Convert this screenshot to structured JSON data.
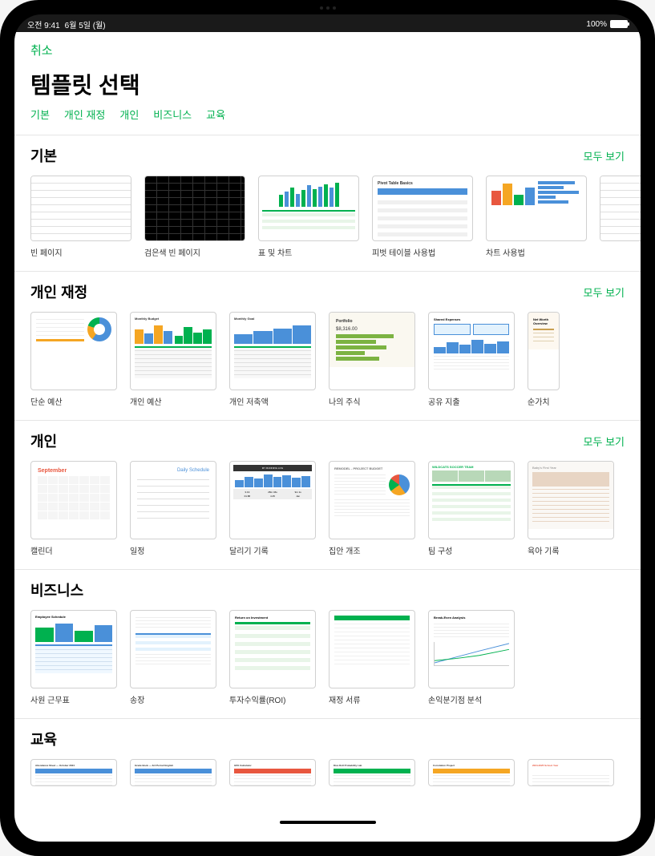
{
  "status": {
    "time": "오전 9:41",
    "date": "6월 5일 (월)",
    "battery": "100%"
  },
  "nav": {
    "cancel": "취소"
  },
  "title": "템플릿 선택",
  "categories": [
    "기본",
    "개인 재정",
    "개인",
    "비즈니스",
    "교육"
  ],
  "see_all": "모두 보기",
  "colors": {
    "accent": "#00b14f",
    "blue": "#4a90d9",
    "orange": "#f5a623",
    "red": "#e8573f",
    "lime": "#7cb342"
  },
  "sections": [
    {
      "title": "기본",
      "show_see_all": true,
      "templates": [
        {
          "label": "빈 페이지",
          "thumb": "blank_grid"
        },
        {
          "label": "검은색 빈 페이지",
          "thumb": "blank_black"
        },
        {
          "label": "표 및 차트",
          "thumb": "tables_charts"
        },
        {
          "label": "피벗 테이블 사용법",
          "thumb": "pivot_basics"
        },
        {
          "label": "차트 사용법",
          "thumb": "charting_basics"
        }
      ],
      "partial": {
        "thumb": "blank_grid"
      }
    },
    {
      "title": "개인 재정",
      "show_see_all": true,
      "templates": [
        {
          "label": "단순 예산",
          "thumb": "simple_budget"
        },
        {
          "label": "개인 예산",
          "thumb": "personal_budget"
        },
        {
          "label": "개인 저축액",
          "thumb": "personal_savings"
        },
        {
          "label": "나의 주식",
          "thumb": "portfolio"
        },
        {
          "label": "공유 지출",
          "thumb": "shared_expenses"
        },
        {
          "label": "순가치",
          "thumb": "net_worth",
          "partial": true
        }
      ]
    },
    {
      "title": "개인",
      "show_see_all": true,
      "templates": [
        {
          "label": "캘린더",
          "thumb": "calendar"
        },
        {
          "label": "일정",
          "thumb": "schedule"
        },
        {
          "label": "달리기 기록",
          "thumb": "running_log"
        },
        {
          "label": "집안 개조",
          "thumb": "remodel"
        },
        {
          "label": "팀 구성",
          "thumb": "team_roster"
        },
        {
          "label": "육아 기록",
          "thumb": "baby_record"
        }
      ]
    },
    {
      "title": "비즈니스",
      "show_see_all": false,
      "templates": [
        {
          "label": "사원 근무표",
          "thumb": "employee_schedule"
        },
        {
          "label": "송장",
          "thumb": "invoice"
        },
        {
          "label": "투자수익률(ROI)",
          "thumb": "roi"
        },
        {
          "label": "재정 서류",
          "thumb": "financials"
        },
        {
          "label": "손익분기점 분석",
          "thumb": "break_even"
        }
      ]
    },
    {
      "title": "교육",
      "show_see_all": false,
      "cut_off": true,
      "templates": [
        {
          "label": "",
          "thumb": "attendance",
          "header_color": "#4a90d9",
          "title_text": "Attendance Sheet — October 2024"
        },
        {
          "label": "",
          "thumb": "gradebook",
          "header_color": "#4a90d9",
          "title_text": "Grade Book — 3rd Period English"
        },
        {
          "label": "",
          "thumb": "gpa",
          "header_color": "#e8573f",
          "title_text": "GPA Calculator"
        },
        {
          "label": "",
          "thumb": "dice",
          "header_color": "#00b14f",
          "title_text": "Dice Roll Probability Lab"
        },
        {
          "label": "",
          "thumb": "correlation",
          "header_color": "#f5a623",
          "title_text": "Correlation Project"
        },
        {
          "label": "",
          "thumb": "year",
          "header_color": "#fff",
          "title_text": "2024-2025 School Year",
          "text_color": "#e8573f"
        }
      ]
    }
  ],
  "thumb_content": {
    "pivot_basics": "Pivot Table Basics",
    "monthly_budget": "Monthly Budget",
    "monthly_goal": "Monthly Goal",
    "portfolio": "Portfolio",
    "portfolio_value": "$8,316.00",
    "shared_expenses": "Shared Expenses",
    "net_worth": "Net Worth Overview",
    "calendar_month": "September",
    "daily_schedule": "Daily Schedule",
    "running_log": "MY RUNNING LOG",
    "run_stats": [
      "3.19",
      "28m 46s",
      "9m 1s",
      "01.88",
      "4.45",
      "Jan"
    ],
    "remodel": "REMODEL - PROJECT BUDGET",
    "team": "WILDCATS SOCCER TEAM",
    "baby": "Baby's First Year",
    "employee": "Employee Schedule",
    "roi": "Return on Investment",
    "break_even": "Break-Even Analysis"
  },
  "chart_data": {
    "tables_charts_bars": [
      {
        "h": 50,
        "c": "#00b14f"
      },
      {
        "h": 65,
        "c": "#4a90d9"
      },
      {
        "h": 80,
        "c": "#00b14f"
      },
      {
        "h": 55,
        "c": "#4a90d9"
      },
      {
        "h": 70,
        "c": "#00b14f"
      },
      {
        "h": 90,
        "c": "#4a90d9"
      },
      {
        "h": 75,
        "c": "#00b14f"
      },
      {
        "h": 85,
        "c": "#4a90d9"
      },
      {
        "h": 95,
        "c": "#00b14f"
      },
      {
        "h": 80,
        "c": "#4a90d9"
      },
      {
        "h": 100,
        "c": "#00b14f"
      }
    ],
    "guide_bars": [
      {
        "h": 60,
        "c": "#e8573f"
      },
      {
        "h": 90,
        "c": "#f5a623"
      },
      {
        "h": 45,
        "c": "#00b14f"
      },
      {
        "h": 75,
        "c": "#4a90d9"
      }
    ],
    "guide_hbars": [
      {
        "w": 85,
        "c": "#4a90d9"
      },
      {
        "w": 60,
        "c": "#4a90d9"
      },
      {
        "w": 95,
        "c": "#4a90d9"
      },
      {
        "w": 40,
        "c": "#4a90d9"
      },
      {
        "w": 70,
        "c": "#4a90d9"
      }
    ],
    "monthly_budget_bars": [
      [
        {
          "h": 70,
          "c": "#f5a623"
        },
        {
          "h": 50,
          "c": "#4a90d9"
        },
        {
          "h": 90,
          "c": "#f5a623"
        },
        {
          "h": 60,
          "c": "#4a90d9"
        }
      ],
      [
        {
          "h": 40,
          "c": "#00b14f"
        },
        {
          "h": 80,
          "c": "#00b14f"
        },
        {
          "h": 55,
          "c": "#00b14f"
        },
        {
          "h": 70,
          "c": "#00b14f"
        }
      ]
    ],
    "savings_bars": [
      {
        "h": 45,
        "c": "#4a90d9"
      },
      {
        "h": 60,
        "c": "#4a90d9"
      },
      {
        "h": 75,
        "c": "#4a90d9"
      },
      {
        "h": 90,
        "c": "#4a90d9"
      }
    ],
    "portfolio_bars": [
      80,
      55,
      70,
      40,
      60
    ],
    "shared_chart": [
      40,
      70,
      55,
      85,
      60,
      75
    ],
    "running_bars": [
      50,
      70,
      60,
      90,
      75,
      85,
      65,
      80
    ],
    "emp_bars": [
      {
        "h": 70,
        "c": "#00b14f"
      },
      {
        "h": 90,
        "c": "#4a90d9"
      },
      {
        "h": 55,
        "c": "#00b14f"
      },
      {
        "h": 80,
        "c": "#4a90d9"
      }
    ]
  }
}
